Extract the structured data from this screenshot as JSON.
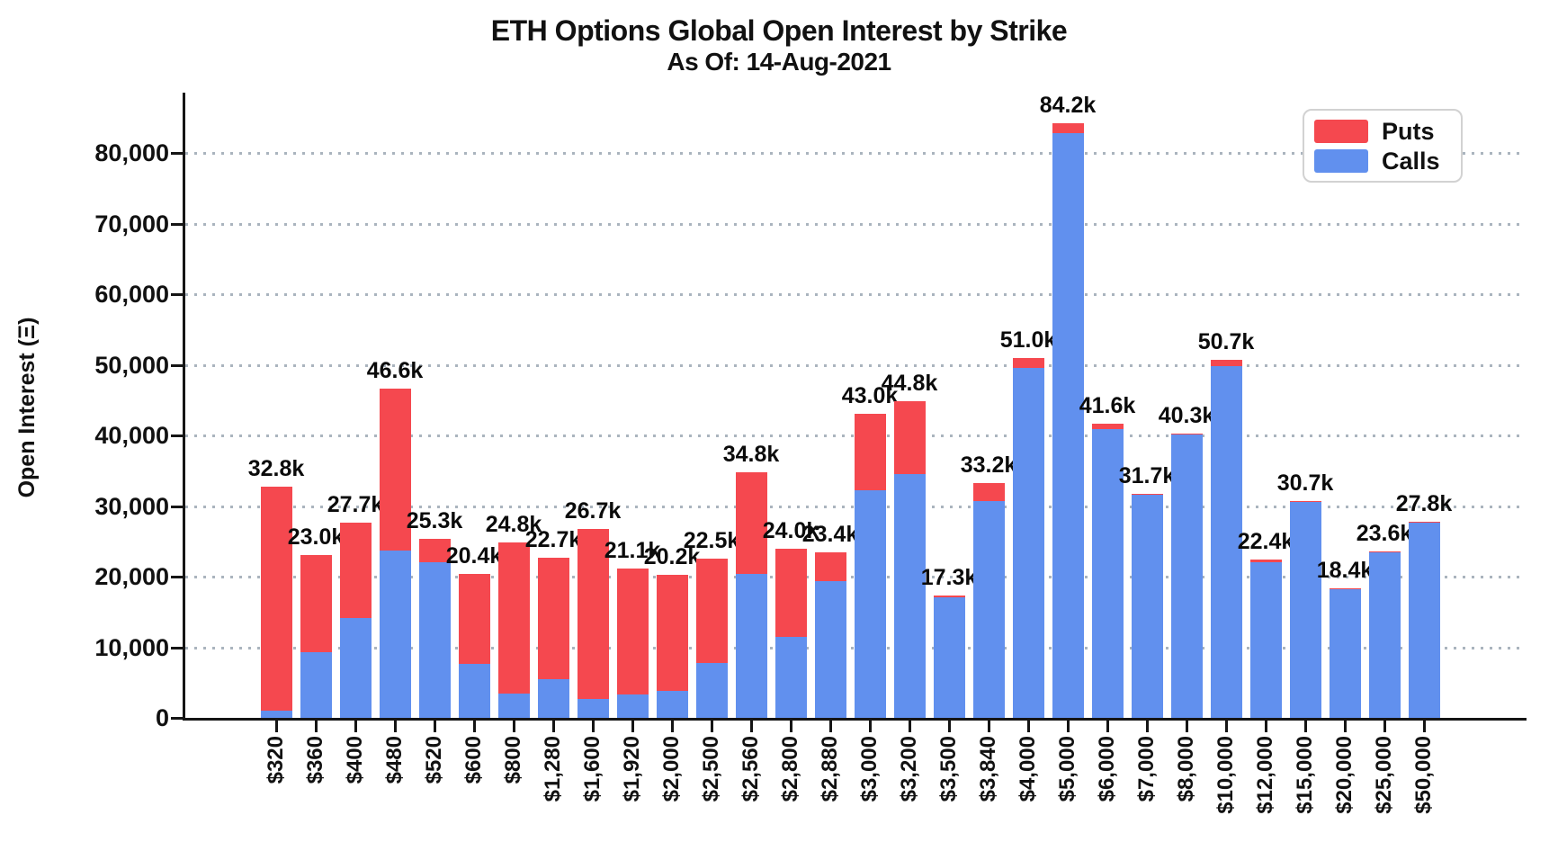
{
  "chart_data": {
    "type": "bar",
    "stacked": true,
    "title": "ETH Options Global Open Interest by Strike",
    "subtitle": "As Of: 14-Aug-2021",
    "xlabel": "",
    "ylabel": "Open Interest (Ξ)",
    "ylim": [
      0,
      88500
    ],
    "yticks": [
      0,
      10000,
      20000,
      30000,
      40000,
      50000,
      60000,
      70000,
      80000
    ],
    "ytick_labels": [
      "0",
      "10,000",
      "20,000",
      "30,000",
      "40,000",
      "50,000",
      "60,000",
      "70,000",
      "80,000"
    ],
    "grid": "horizontal-dotted",
    "legend_position": "top-right",
    "categories": [
      "$320",
      "$360",
      "$400",
      "$480",
      "$520",
      "$600",
      "$800",
      "$1,280",
      "$1,600",
      "$1,920",
      "$2,000",
      "$2,500",
      "$2,560",
      "$2,800",
      "$2,880",
      "$3,000",
      "$3,200",
      "$3,500",
      "$3,840",
      "$4,000",
      "$5,000",
      "$6,000",
      "$7,000",
      "$8,000",
      "$10,000",
      "$12,000",
      "$15,000",
      "$20,000",
      "$25,000",
      "$50,000"
    ],
    "series": [
      {
        "name": "Calls",
        "color": "#6190ee",
        "values": [
          1000,
          9300,
          14100,
          23700,
          22000,
          7600,
          3400,
          5500,
          2700,
          3300,
          3800,
          7800,
          20400,
          11500,
          19300,
          32200,
          34500,
          17100,
          30700,
          49500,
          82800,
          40900,
          31600,
          40100,
          49800,
          22100,
          30600,
          18300,
          23500,
          27700
        ]
      },
      {
        "name": "Puts",
        "color": "#f5484f",
        "values": [
          31800,
          13700,
          13600,
          22900,
          3300,
          12800,
          21400,
          17200,
          24000,
          17800,
          16400,
          14700,
          14400,
          12500,
          4100,
          10800,
          10300,
          200,
          2500,
          1500,
          1400,
          700,
          100,
          200,
          900,
          300,
          100,
          100,
          100,
          100
        ]
      }
    ],
    "totals": [
      32800,
      23000,
      27700,
      46600,
      25300,
      20400,
      24800,
      22700,
      26700,
      21100,
      20200,
      22500,
      34800,
      24000,
      23400,
      43000,
      44800,
      17300,
      33200,
      51000,
      84200,
      41600,
      31700,
      40300,
      50700,
      22400,
      30700,
      18400,
      23600,
      27800
    ],
    "total_labels": [
      "32.8k",
      "23.0k",
      "27.7k",
      "46.6k",
      "25.3k",
      "20.4k",
      "24.8k",
      "22.7k",
      "26.7k",
      "21.1k",
      "20.2k",
      "22.5k",
      "34.8k",
      "24.0k",
      "23.4k",
      "43.0k",
      "44.8k",
      "17.3k",
      "33.2k",
      "51.0k",
      "84.2k",
      "41.6k",
      "31.7k",
      "40.3k",
      "50.7k",
      "22.4k",
      "30.7k",
      "18.4k",
      "23.6k",
      "27.8k"
    ]
  },
  "legend": {
    "entries": [
      {
        "label": "Puts",
        "color": "#f5484f"
      },
      {
        "label": "Calls",
        "color": "#6190ee"
      }
    ]
  },
  "colors": {
    "puts": "#f5484f",
    "calls": "#6190ee",
    "grid": "#aab4be",
    "axis": "#151515",
    "text": "#111111",
    "legend_border": "#d2d2d2",
    "background": "#ffffff"
  }
}
